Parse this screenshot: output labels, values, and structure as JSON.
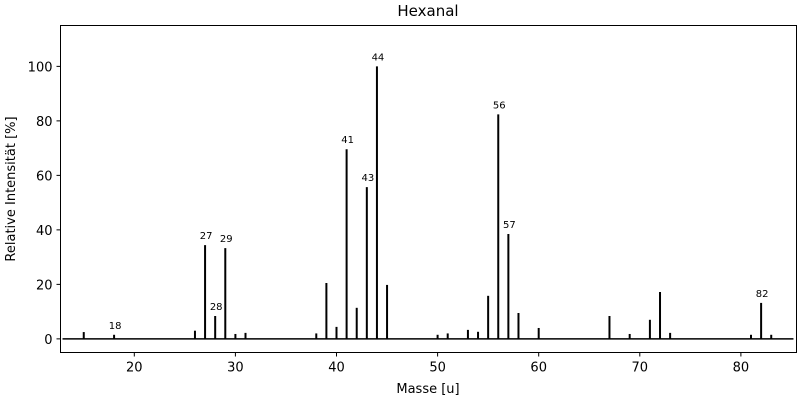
{
  "chart_data": {
    "type": "bar",
    "title": "Hexanal",
    "xlabel": "Masse [u]",
    "ylabel": "Relative Intensität [%]",
    "xlim": [
      12.7,
      85.5
    ],
    "ylim": [
      -5,
      115
    ],
    "xticks": [
      20,
      30,
      40,
      50,
      60,
      70,
      80
    ],
    "yticks": [
      0,
      20,
      40,
      60,
      80,
      100
    ],
    "grid": false,
    "x": [
      15,
      18,
      26,
      27,
      28,
      29,
      30,
      31,
      38,
      39,
      40,
      41,
      42,
      43,
      44,
      45,
      50,
      51,
      53,
      54,
      55,
      56,
      57,
      58,
      60,
      67,
      69,
      71,
      72,
      73,
      81,
      82,
      83
    ],
    "values": [
      2.5,
      1.5,
      3,
      34.4,
      8.4,
      33.3,
      1.8,
      2.2,
      2,
      20.5,
      4.4,
      69.6,
      11.4,
      55.7,
      100,
      19.8,
      1.5,
      2,
      3.3,
      2.6,
      15.8,
      82.4,
      38.5,
      9.5,
      4,
      8.4,
      1.8,
      7,
      17.2,
      2.2,
      1.5,
      13.2,
      1.5
    ],
    "peak_labels": [
      "18",
      "27",
      "28",
      "29",
      "41",
      "43",
      "44",
      "56",
      "57",
      "82"
    ]
  }
}
